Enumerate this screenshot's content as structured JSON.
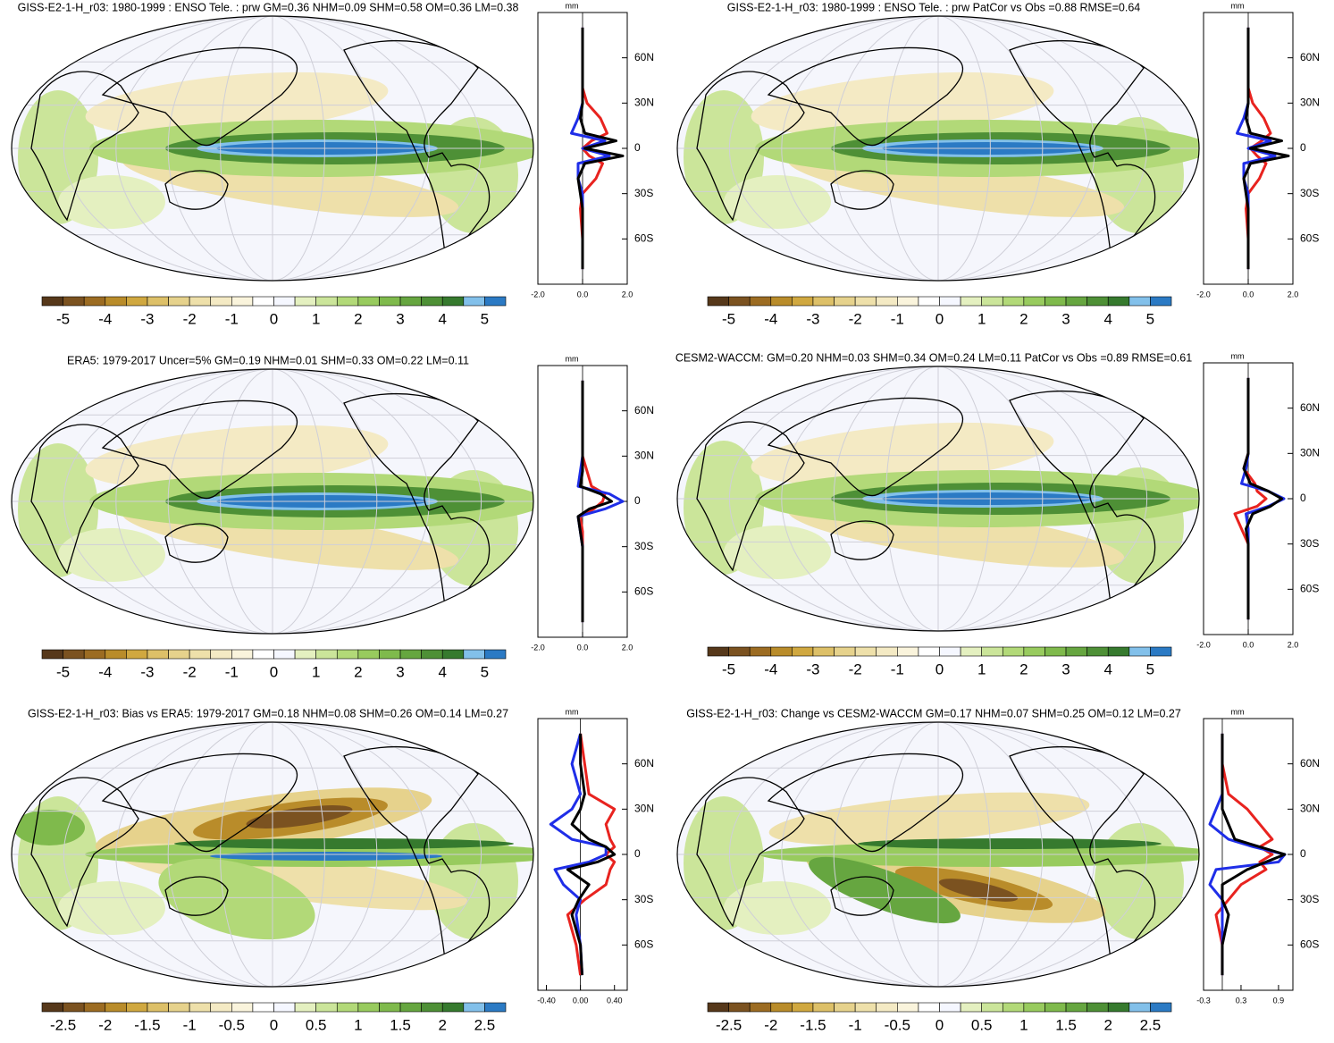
{
  "chart_data": [
    {
      "type": "map",
      "title": "GISS-E2-1-H_r03: 1980-1999 : ENSO Tele. : prw GM=0.36 NHM=0.09 SHM=0.58 OM=0.36 LM=0.38",
      "colorbar": {
        "lim": [
          -5.5,
          5.5
        ],
        "ticks": [
          -5,
          -4,
          -3,
          -2,
          -1,
          0,
          1,
          2,
          3,
          4,
          5
        ],
        "colors": [
          "#56381a",
          "#7b5220",
          "#9c6c22",
          "#b98c2a",
          "#d0a840",
          "#ddc068",
          "#e6d28c",
          "#eee0aa",
          "#f4eac4",
          "#faf4dc",
          "#ffffff",
          "#f5f7ff",
          "#e4f0c0",
          "#cbe59a",
          "#b2d978",
          "#98cb5e",
          "#7fba4c",
          "#66a640",
          "#4e9036",
          "#367a2e",
          "#82c0ea",
          "#2b7ac4"
        ]
      },
      "profile": {
        "type": "line",
        "units": "mm",
        "y": [
          -80,
          -60,
          -40,
          -30,
          -20,
          -10,
          -5,
          0,
          5,
          10,
          20,
          30,
          40,
          60,
          80
        ],
        "ylim": [
          -90,
          90
        ],
        "yticks": [
          {
            "value": 60,
            "label": "60N"
          },
          {
            "value": 30,
            "label": "30N"
          },
          0,
          {
            "value": -30,
            "label": "30S"
          },
          {
            "value": -60,
            "label": "60S"
          }
        ],
        "xlim": [
          -2,
          2
        ],
        "xticks": [
          {
            "value": -2,
            "label": "-2.0"
          },
          {
            "value": 0,
            "label": "0.0"
          },
          {
            "value": 2,
            "label": "2.0"
          }
        ],
        "series": [
          {
            "color": "#e8231f",
            "values": [
              0,
              0,
              -0.1,
              0,
              0.6,
              0.9,
              0.3,
              0,
              0.4,
              1.1,
              0.8,
              0.2,
              0,
              0,
              0
            ]
          },
          {
            "color": "#1f2ee8",
            "values": [
              0,
              0,
              0,
              0,
              -0.2,
              -0.2,
              1.2,
              0,
              1.0,
              -0.5,
              -0.2,
              0,
              0,
              0,
              0
            ]
          },
          {
            "color": "#000000",
            "values": [
              0,
              0,
              0,
              -0.1,
              -0.2,
              0.1,
              1.8,
              0.1,
              1.5,
              0.1,
              -0.1,
              0,
              0,
              0,
              0
            ]
          }
        ]
      }
    },
    {
      "type": "map",
      "title": "GISS-E2-1-H_r03: 1980-1999 : ENSO Tele. : prw PatCor vs Obs =0.88 RMSE=0.64",
      "colorbar": {
        "lim": [
          -5.5,
          5.5
        ],
        "ticks": [
          -5,
          -4,
          -3,
          -2,
          -1,
          0,
          1,
          2,
          3,
          4,
          5
        ],
        "colors": [
          "#56381a",
          "#7b5220",
          "#9c6c22",
          "#b98c2a",
          "#d0a840",
          "#ddc068",
          "#e6d28c",
          "#eee0aa",
          "#f4eac4",
          "#faf4dc",
          "#ffffff",
          "#f5f7ff",
          "#e4f0c0",
          "#cbe59a",
          "#b2d978",
          "#98cb5e",
          "#7fba4c",
          "#66a640",
          "#4e9036",
          "#367a2e",
          "#82c0ea",
          "#2b7ac4"
        ]
      },
      "profile": {
        "type": "line",
        "units": "mm",
        "y": [
          -80,
          -60,
          -40,
          -30,
          -20,
          -10,
          -5,
          0,
          5,
          10,
          20,
          30,
          40,
          60,
          80
        ],
        "ylim": [
          -90,
          90
        ],
        "yticks": [
          {
            "value": 60,
            "label": "60N"
          },
          {
            "value": 30,
            "label": "30N"
          },
          0,
          {
            "value": -30,
            "label": "30S"
          },
          {
            "value": -60,
            "label": "60S"
          }
        ],
        "xlim": [
          -2,
          2
        ],
        "xticks": [
          {
            "value": -2,
            "label": "-2.0"
          },
          {
            "value": 0,
            "label": "0.0"
          },
          {
            "value": 2,
            "label": "2.0"
          }
        ],
        "series": [
          {
            "color": "#e8231f",
            "values": [
              0,
              0,
              -0.1,
              0,
              0.5,
              0.8,
              0.4,
              0.1,
              0.6,
              1.0,
              0.7,
              0.2,
              0,
              0,
              0
            ]
          },
          {
            "color": "#1f2ee8",
            "values": [
              0,
              0,
              0,
              0,
              -0.2,
              -0.2,
              1.2,
              0,
              1.0,
              -0.5,
              -0.2,
              0,
              0,
              0,
              0
            ]
          },
          {
            "color": "#000000",
            "values": [
              0,
              0,
              0,
              -0.1,
              -0.2,
              0.1,
              1.8,
              0.1,
              1.5,
              0.1,
              -0.1,
              0,
              0,
              0,
              0
            ]
          }
        ]
      }
    },
    {
      "type": "map",
      "title": "ERA5: 1979-2017 Uncer=5% GM=0.19 NHM=0.01 SHM=0.33 OM=0.22 LM=0.11",
      "colorbar": {
        "lim": [
          -5.5,
          5.5
        ],
        "ticks": [
          -5,
          -4,
          -3,
          -2,
          -1,
          0,
          1,
          2,
          3,
          4,
          5
        ],
        "colors": [
          "#56381a",
          "#7b5220",
          "#9c6c22",
          "#b98c2a",
          "#d0a840",
          "#ddc068",
          "#e6d28c",
          "#eee0aa",
          "#f4eac4",
          "#faf4dc",
          "#ffffff",
          "#f5f7ff",
          "#e4f0c0",
          "#cbe59a",
          "#b2d978",
          "#98cb5e",
          "#7fba4c",
          "#66a640",
          "#4e9036",
          "#367a2e",
          "#82c0ea",
          "#2b7ac4"
        ]
      },
      "profile": {
        "type": "line",
        "units": "mm",
        "y": [
          -80,
          -60,
          -40,
          -30,
          -20,
          -10,
          -5,
          0,
          5,
          10,
          20,
          30,
          40,
          60,
          80
        ],
        "ylim": [
          -90,
          90
        ],
        "yticks": [
          {
            "value": 60,
            "label": "60N"
          },
          {
            "value": 30,
            "label": "30N"
          },
          0,
          {
            "value": -30,
            "label": "30S"
          },
          {
            "value": -60,
            "label": "60S"
          }
        ],
        "xlim": [
          -2,
          2
        ],
        "xticks": [
          {
            "value": -2,
            "label": "-2.0"
          },
          {
            "value": 0,
            "label": "0.0"
          },
          {
            "value": 2,
            "label": "2.0"
          }
        ],
        "series": [
          {
            "color": "#e8231f",
            "values": [
              0,
              0,
              0,
              0,
              0,
              -0.1,
              0.5,
              0.9,
              1.0,
              0.4,
              0.2,
              0,
              0,
              0,
              0
            ]
          },
          {
            "color": "#1f2ee8",
            "values": [
              0,
              0,
              0,
              0,
              -0.1,
              -0.2,
              1.0,
              1.8,
              1.2,
              -0.2,
              -0.1,
              0,
              0,
              0,
              0
            ]
          },
          {
            "color": "#000000",
            "values": [
              0,
              0,
              0,
              0,
              -0.1,
              -0.2,
              0.3,
              1.3,
              0.8,
              -0.1,
              0,
              0,
              0,
              0,
              0
            ]
          }
        ]
      }
    },
    {
      "type": "map",
      "title": "CESM2-WACCM: GM=0.20 NHM=0.03 SHM=0.34 OM=0.24 LM=0.11 PatCor vs Obs =0.89 RMSE=0.61",
      "colorbar": {
        "lim": [
          -5.5,
          5.5
        ],
        "ticks": [
          -5,
          -4,
          -3,
          -2,
          -1,
          0,
          1,
          2,
          3,
          4,
          5
        ],
        "colors": [
          "#56381a",
          "#7b5220",
          "#9c6c22",
          "#b98c2a",
          "#d0a840",
          "#ddc068",
          "#e6d28c",
          "#eee0aa",
          "#f4eac4",
          "#faf4dc",
          "#ffffff",
          "#f5f7ff",
          "#e4f0c0",
          "#cbe59a",
          "#b2d978",
          "#98cb5e",
          "#7fba4c",
          "#66a640",
          "#4e9036",
          "#367a2e",
          "#82c0ea",
          "#2b7ac4"
        ]
      },
      "profile": {
        "type": "line",
        "units": "mm",
        "y": [
          -80,
          -60,
          -40,
          -30,
          -20,
          -10,
          -5,
          0,
          5,
          10,
          20,
          30,
          40,
          60,
          80
        ],
        "ylim": [
          -90,
          90
        ],
        "yticks": [
          {
            "value": 60,
            "label": "60N"
          },
          {
            "value": 30,
            "label": "30N"
          },
          0,
          {
            "value": -30,
            "label": "30S"
          },
          {
            "value": -60,
            "label": "60S"
          }
        ],
        "xlim": [
          -2,
          2
        ],
        "xticks": [
          {
            "value": -2,
            "label": "-2.0"
          },
          {
            "value": 0,
            "label": "0.0"
          },
          {
            "value": 2,
            "label": "2.0"
          }
        ],
        "series": [
          {
            "color": "#e8231f",
            "values": [
              0,
              0,
              0,
              0,
              -0.3,
              -0.6,
              0.4,
              0.8,
              0.4,
              0.3,
              -0.2,
              0,
              0,
              0,
              0
            ]
          },
          {
            "color": "#1f2ee8",
            "values": [
              0,
              0,
              0,
              0,
              0,
              -0.1,
              0.9,
              1.6,
              0.9,
              -0.3,
              -0.1,
              0,
              0,
              0,
              0
            ]
          },
          {
            "color": "#000000",
            "values": [
              0,
              0,
              0,
              0,
              -0.1,
              0.2,
              1.0,
              1.5,
              0.9,
              0.1,
              -0.2,
              0,
              0,
              0,
              0
            ]
          }
        ]
      }
    },
    {
      "type": "map",
      "title": "GISS-E2-1-H_r03: Bias vs ERA5: 1979-2017 GM=0.18 NHM=0.08 SHM=0.26 OM=0.14 LM=0.27",
      "colorbar": {
        "lim": [
          -2.75,
          2.75
        ],
        "ticks": [
          -2.5,
          -2,
          -1.5,
          -1,
          -0.5,
          0,
          0.5,
          1,
          1.5,
          2,
          2.5
        ],
        "colors": [
          "#56381a",
          "#7b5220",
          "#9c6c22",
          "#b98c2a",
          "#d0a840",
          "#ddc068",
          "#e6d28c",
          "#eee0aa",
          "#f4eac4",
          "#faf4dc",
          "#ffffff",
          "#f5f7ff",
          "#e4f0c0",
          "#cbe59a",
          "#b2d978",
          "#98cb5e",
          "#7fba4c",
          "#66a640",
          "#4e9036",
          "#367a2e",
          "#82c0ea",
          "#2b7ac4"
        ]
      },
      "profile": {
        "type": "line",
        "units": "mm",
        "y": [
          -80,
          -60,
          -40,
          -30,
          -20,
          -10,
          -5,
          0,
          5,
          10,
          20,
          30,
          40,
          60,
          80
        ],
        "ylim": [
          -90,
          90
        ],
        "yticks": [
          {
            "value": 60,
            "label": "60N"
          },
          {
            "value": 30,
            "label": "30N"
          },
          0,
          {
            "value": -30,
            "label": "30S"
          },
          {
            "value": -60,
            "label": "60S"
          }
        ],
        "xlim": [
          -0.5,
          0.55
        ],
        "xticks": [
          {
            "value": -0.4,
            "label": "-0.40"
          },
          {
            "value": 0,
            "label": "0.00"
          },
          {
            "value": 0.4,
            "label": "0.40"
          }
        ],
        "series": [
          {
            "color": "#e8231f",
            "values": [
              0,
              -0.05,
              -0.15,
              0.05,
              0.3,
              0.35,
              0.4,
              0.3,
              0.4,
              0.35,
              0.3,
              0.4,
              0.1,
              0.05,
              0
            ]
          },
          {
            "color": "#1f2ee8",
            "values": [
              0.02,
              0,
              -0.05,
              0,
              -0.2,
              -0.3,
              0.1,
              0.3,
              0.3,
              -0.1,
              -0.35,
              -0.1,
              0,
              -0.1,
              0
            ]
          },
          {
            "color": "#000000",
            "values": [
              0.02,
              0,
              -0.1,
              -0.02,
              0.1,
              -0.15,
              0.2,
              0.4,
              0.3,
              0.1,
              -0.1,
              0,
              0.05,
              0,
              0
            ]
          }
        ]
      }
    },
    {
      "type": "map",
      "title": "GISS-E2-1-H_r03: Change vs CESM2-WACCM GM=0.17 NHM=0.07 SHM=0.25 OM=0.12 LM=0.27",
      "colorbar": {
        "lim": [
          -2.75,
          2.75
        ],
        "ticks": [
          -2.5,
          -2,
          -1.5,
          -1,
          -0.5,
          0,
          0.5,
          1,
          1.5,
          2,
          2.5
        ],
        "colors": [
          "#56381a",
          "#7b5220",
          "#9c6c22",
          "#b98c2a",
          "#d0a840",
          "#ddc068",
          "#e6d28c",
          "#eee0aa",
          "#f4eac4",
          "#faf4dc",
          "#ffffff",
          "#f5f7ff",
          "#e4f0c0",
          "#cbe59a",
          "#b2d978",
          "#98cb5e",
          "#7fba4c",
          "#66a640",
          "#4e9036",
          "#367a2e",
          "#82c0ea",
          "#2b7ac4"
        ]
      },
      "profile": {
        "type": "line",
        "units": "mm",
        "y": [
          -80,
          -60,
          -40,
          -30,
          -20,
          -10,
          -5,
          0,
          5,
          10,
          20,
          30,
          40,
          60,
          80
        ],
        "ylim": [
          -90,
          90
        ],
        "yticks": [
          {
            "value": 60,
            "label": "60N"
          },
          {
            "value": 30,
            "label": "30N"
          },
          0,
          {
            "value": -30,
            "label": "30S"
          },
          {
            "value": -60,
            "label": "60S"
          }
        ],
        "xlim": [
          -0.3,
          1.13
        ],
        "xticks": [
          {
            "value": -0.3,
            "label": "-0.3"
          },
          {
            "value": 0.3,
            "label": "0.3"
          },
          {
            "value": 0.9,
            "label": "0.9"
          }
        ],
        "series": [
          {
            "color": "#e8231f",
            "values": [
              0,
              0,
              -0.1,
              0.1,
              0.3,
              0.7,
              0.6,
              0.8,
              0.6,
              0.8,
              0.6,
              0.4,
              0.1,
              0,
              0
            ]
          },
          {
            "color": "#1f2ee8",
            "values": [
              0,
              0,
              0,
              0,
              -0.2,
              -0.1,
              0.9,
              1.0,
              0.5,
              0.1,
              -0.2,
              -0.1,
              0,
              0,
              0
            ]
          },
          {
            "color": "#000000",
            "values": [
              0,
              0,
              0.1,
              0,
              0,
              0.4,
              0.7,
              1.0,
              0.6,
              0.2,
              0.1,
              0,
              0,
              0,
              0
            ]
          }
        ]
      }
    }
  ]
}
